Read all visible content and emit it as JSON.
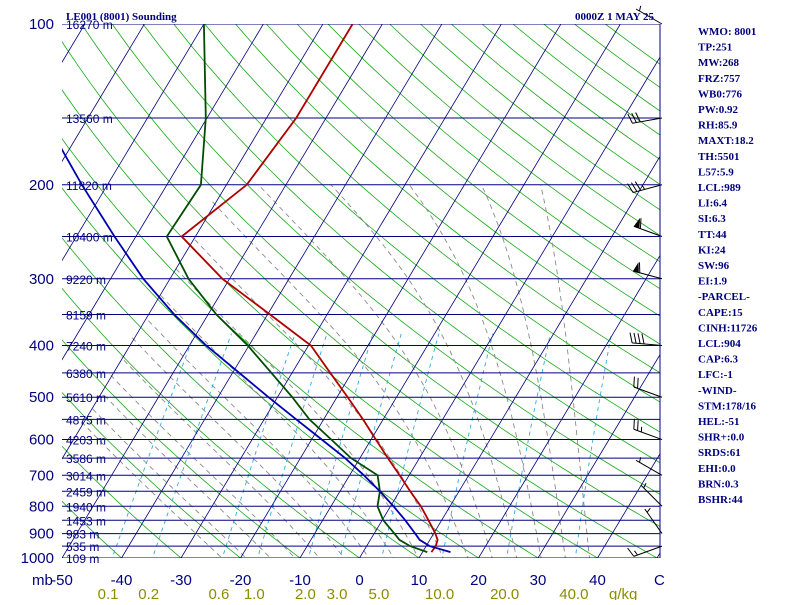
{
  "header": {
    "station": "LE001 (8001) Sounding",
    "time": "0000Z  1 MAY 25"
  },
  "colors": {
    "isobar": "#00007f",
    "isotherm": "#00007f",
    "dry_adiabat": "#1aa81a",
    "moist_adiabat": "#8a8a8a",
    "mixing_ratio": "#33aadd",
    "temperature": "#b00000",
    "dewpoint": "#004d00",
    "parcel": "#0000b0",
    "wind": "#000000",
    "text": "#00007f",
    "mixing_text": "#8c8c00"
  },
  "chart_data": {
    "type": "line",
    "diagram": "skew-t log-p",
    "y_axis": {
      "unit_label": "mb",
      "scale": "log",
      "range": [
        1000,
        100
      ],
      "tick_labels": [
        "100",
        "200",
        "300",
        "400",
        "500",
        "600",
        "700",
        "800",
        "900",
        "1000"
      ]
    },
    "x_axis": {
      "unit_label": "C",
      "ticks": [
        -50,
        -40,
        -30,
        -20,
        -10,
        0,
        10,
        20,
        30,
        40
      ],
      "tick_labels": [
        "-50",
        "-40",
        "-30",
        "-20",
        "-10",
        "0",
        "10",
        "20",
        "30",
        "40"
      ]
    },
    "mixing_ratio_axis": {
      "unit_label": "g/kg",
      "values": [
        0.1,
        0.2,
        0.6,
        1.0,
        2.0,
        3.0,
        5.0,
        10.0,
        20.0,
        40.0
      ],
      "tick_labels": [
        "0.1",
        "0.2",
        "0.6",
        "1.0",
        "2.0",
        "3.0",
        "5.0",
        "10.0",
        "20.0",
        "40.0"
      ]
    },
    "height_labels": [
      {
        "p": 100,
        "label": "16270 m"
      },
      {
        "p": 150,
        "label": "13560 m"
      },
      {
        "p": 200,
        "label": "11820 m"
      },
      {
        "p": 250,
        "label": "10400 m"
      },
      {
        "p": 300,
        "label": "9220 m"
      },
      {
        "p": 350,
        "label": "8159 m"
      },
      {
        "p": 400,
        "label": "7240 m"
      },
      {
        "p": 450,
        "label": "6380 m"
      },
      {
        "p": 500,
        "label": "5610 m"
      },
      {
        "p": 550,
        "label": "4875 m"
      },
      {
        "p": 600,
        "label": "4203 m"
      },
      {
        "p": 650,
        "label": "3586 m"
      },
      {
        "p": 700,
        "label": "3014 m"
      },
      {
        "p": 750,
        "label": "2459 m"
      },
      {
        "p": 800,
        "label": "1940 m"
      },
      {
        "p": 850,
        "label": "1453 m"
      },
      {
        "p": 900,
        "label": "983 m"
      },
      {
        "p": 950,
        "label": "535 m"
      },
      {
        "p": 1000,
        "label": "109 m"
      }
    ],
    "series": [
      {
        "key": "temperature",
        "points": [
          {
            "p": 975,
            "t": 11.5
          },
          {
            "p": 950,
            "t": 11.6
          },
          {
            "p": 925,
            "t": 11.3
          },
          {
            "p": 900,
            "t": 10.3
          },
          {
            "p": 850,
            "t": 7.8
          },
          {
            "p": 800,
            "t": 5.1
          },
          {
            "p": 750,
            "t": 1.8
          },
          {
            "p": 700,
            "t": -1.6
          },
          {
            "p": 650,
            "t": -5.3
          },
          {
            "p": 600,
            "t": -9.2
          },
          {
            "p": 550,
            "t": -13.4
          },
          {
            "p": 500,
            "t": -18.2
          },
          {
            "p": 450,
            "t": -23.6
          },
          {
            "p": 400,
            "t": -29.6
          },
          {
            "p": 350,
            "t": -39.6
          },
          {
            "p": 300,
            "t": -51.2
          },
          {
            "p": 250,
            "t": -62.3
          },
          {
            "p": 200,
            "t": -56.6
          },
          {
            "p": 150,
            "t": -55.0
          },
          {
            "p": 100,
            "t": -55.0
          }
        ]
      },
      {
        "key": "dewpoint",
        "points": [
          {
            "p": 975,
            "t": 10.8
          },
          {
            "p": 950,
            "t": 7.3
          },
          {
            "p": 925,
            "t": 4.9
          },
          {
            "p": 900,
            "t": 3.4
          },
          {
            "p": 850,
            "t": 0.2
          },
          {
            "p": 800,
            "t": -2.2
          },
          {
            "p": 750,
            "t": -3.3
          },
          {
            "p": 700,
            "t": -5.3
          },
          {
            "p": 650,
            "t": -11.5
          },
          {
            "p": 600,
            "t": -16.7
          },
          {
            "p": 550,
            "t": -22.4
          },
          {
            "p": 500,
            "t": -27.5
          },
          {
            "p": 450,
            "t": -33.5
          },
          {
            "p": 400,
            "t": -40.2
          },
          {
            "p": 350,
            "t": -48.6
          },
          {
            "p": 300,
            "t": -56.9
          },
          {
            "p": 250,
            "t": -64.8
          },
          {
            "p": 200,
            "t": -64.3
          },
          {
            "p": 150,
            "t": -70.2
          },
          {
            "p": 100,
            "t": -80.0
          }
        ]
      },
      {
        "key": "parcel",
        "points": [
          {
            "p": 975,
            "t": 14.7
          },
          {
            "p": 950,
            "t": 10.6
          },
          {
            "p": 925,
            "t": 8.3
          },
          {
            "p": 900,
            "t": 6.9
          },
          {
            "p": 850,
            "t": 3.9
          },
          {
            "p": 800,
            "t": 0.5
          },
          {
            "p": 750,
            "t": -3.3
          },
          {
            "p": 700,
            "t": -7.6
          },
          {
            "p": 650,
            "t": -12.5
          },
          {
            "p": 600,
            "t": -18.3
          },
          {
            "p": 550,
            "t": -24.6
          },
          {
            "p": 500,
            "t": -31.5
          },
          {
            "p": 450,
            "t": -38.9
          },
          {
            "p": 400,
            "t": -47.2
          },
          {
            "p": 350,
            "t": -55.7
          },
          {
            "p": 300,
            "t": -64.5
          },
          {
            "p": 250,
            "t": -73.6
          },
          {
            "p": 200,
            "t": -84.3
          },
          {
            "p": 150,
            "t": -97.4
          },
          {
            "p": 120,
            "t": -107.0
          }
        ]
      }
    ],
    "wind_barbs": [
      {
        "p": 100,
        "dir": 300,
        "spd": 5
      },
      {
        "p": 150,
        "dir": 260,
        "spd": 30
      },
      {
        "p": 200,
        "dir": 255,
        "spd": 35
      },
      {
        "p": 250,
        "dir": 290,
        "spd": 60
      },
      {
        "p": 300,
        "dir": 285,
        "spd": 60
      },
      {
        "p": 400,
        "dir": 275,
        "spd": 40
      },
      {
        "p": 500,
        "dir": 290,
        "spd": 20
      },
      {
        "p": 600,
        "dir": 290,
        "spd": 25
      },
      {
        "p": 700,
        "dir": 300,
        "spd": 5
      },
      {
        "p": 800,
        "dir": 315,
        "spd": 5
      },
      {
        "p": 900,
        "dir": 325,
        "spd": 5
      },
      {
        "p": 950,
        "dir": 250,
        "spd": 15
      }
    ]
  },
  "indices": [
    "WMO: 8001",
    "TP:251",
    "MW:268",
    "FRZ:757",
    "WB0:776",
    "PW:0.92",
    "RH:85.9",
    "MAXT:18.2",
    "TH:5501",
    "L57:5.9",
    "LCL:989",
    "LI:6.4",
    "SI:6.3",
    "TT:44",
    "KI:24",
    "SW:96",
    "EI:1.9",
    "-PARCEL-",
    "CAPE:15",
    "CINH:11726",
    "LCL:904",
    "CAP:6.3",
    "LFC:-1",
    "-WIND-",
    "STM:178/16",
    "HEL:-51",
    "SHR+:0.0",
    "SRDS:61",
    "EHI:0.0",
    "BRN:0.3",
    "BSHR:44"
  ]
}
